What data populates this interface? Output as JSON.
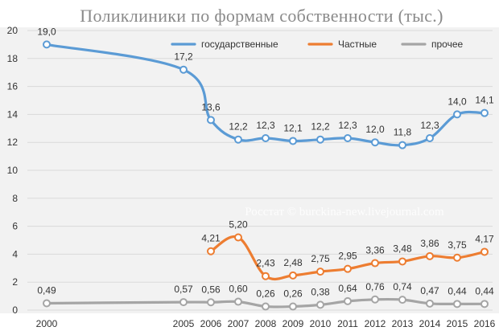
{
  "chart_data": {
    "type": "line",
    "title": "Поликлиники по формам собственности (тыс.)",
    "xlabel": "",
    "ylabel": "",
    "ylim": [
      0,
      20
    ],
    "ytick_step": 2,
    "grid": "horizontal",
    "legend_position": "top-right",
    "categories": [
      "2000",
      "2005",
      "2006",
      "2007",
      "2008",
      "2009",
      "2010",
      "2011",
      "2012",
      "2013",
      "2014",
      "2015",
      "2016"
    ],
    "series": [
      {
        "name": "государственные",
        "color": "#5b9bd5",
        "values": [
          19.0,
          17.2,
          13.6,
          12.2,
          12.3,
          12.1,
          12.2,
          12.3,
          12.0,
          11.8,
          12.3,
          14.0,
          14.1
        ],
        "labels": [
          "19,0",
          "17,2",
          "13,6",
          "12,2",
          "12,3",
          "12,1",
          "12,2",
          "12,3",
          "12,0",
          "11,8",
          "12,3",
          "14,0",
          "14,1"
        ]
      },
      {
        "name": "Частные",
        "color": "#ed7d31",
        "values": [
          null,
          null,
          4.21,
          5.2,
          2.43,
          2.48,
          2.75,
          2.95,
          3.36,
          3.48,
          3.86,
          3.75,
          4.17
        ],
        "labels": [
          "",
          "",
          "4,21",
          "5,20",
          "2,43",
          "2,48",
          "2,75",
          "2,95",
          "3,36",
          "3,48",
          "3,86",
          "3,75",
          "4,17"
        ]
      },
      {
        "name": "прочее",
        "color": "#a5a5a5",
        "values": [
          0.49,
          0.57,
          0.56,
          0.6,
          0.26,
          0.26,
          0.38,
          0.64,
          0.76,
          0.74,
          0.47,
          0.44,
          0.44
        ],
        "labels": [
          "0,49",
          "0,57",
          "0,56",
          "0,60",
          "0,26",
          "0,26",
          "0,38",
          "0,64",
          "0,76",
          "0,74",
          "0,47",
          "0,44",
          "0,44"
        ]
      }
    ],
    "annotation": "Росстат © burckina-new.livejournal.com"
  }
}
